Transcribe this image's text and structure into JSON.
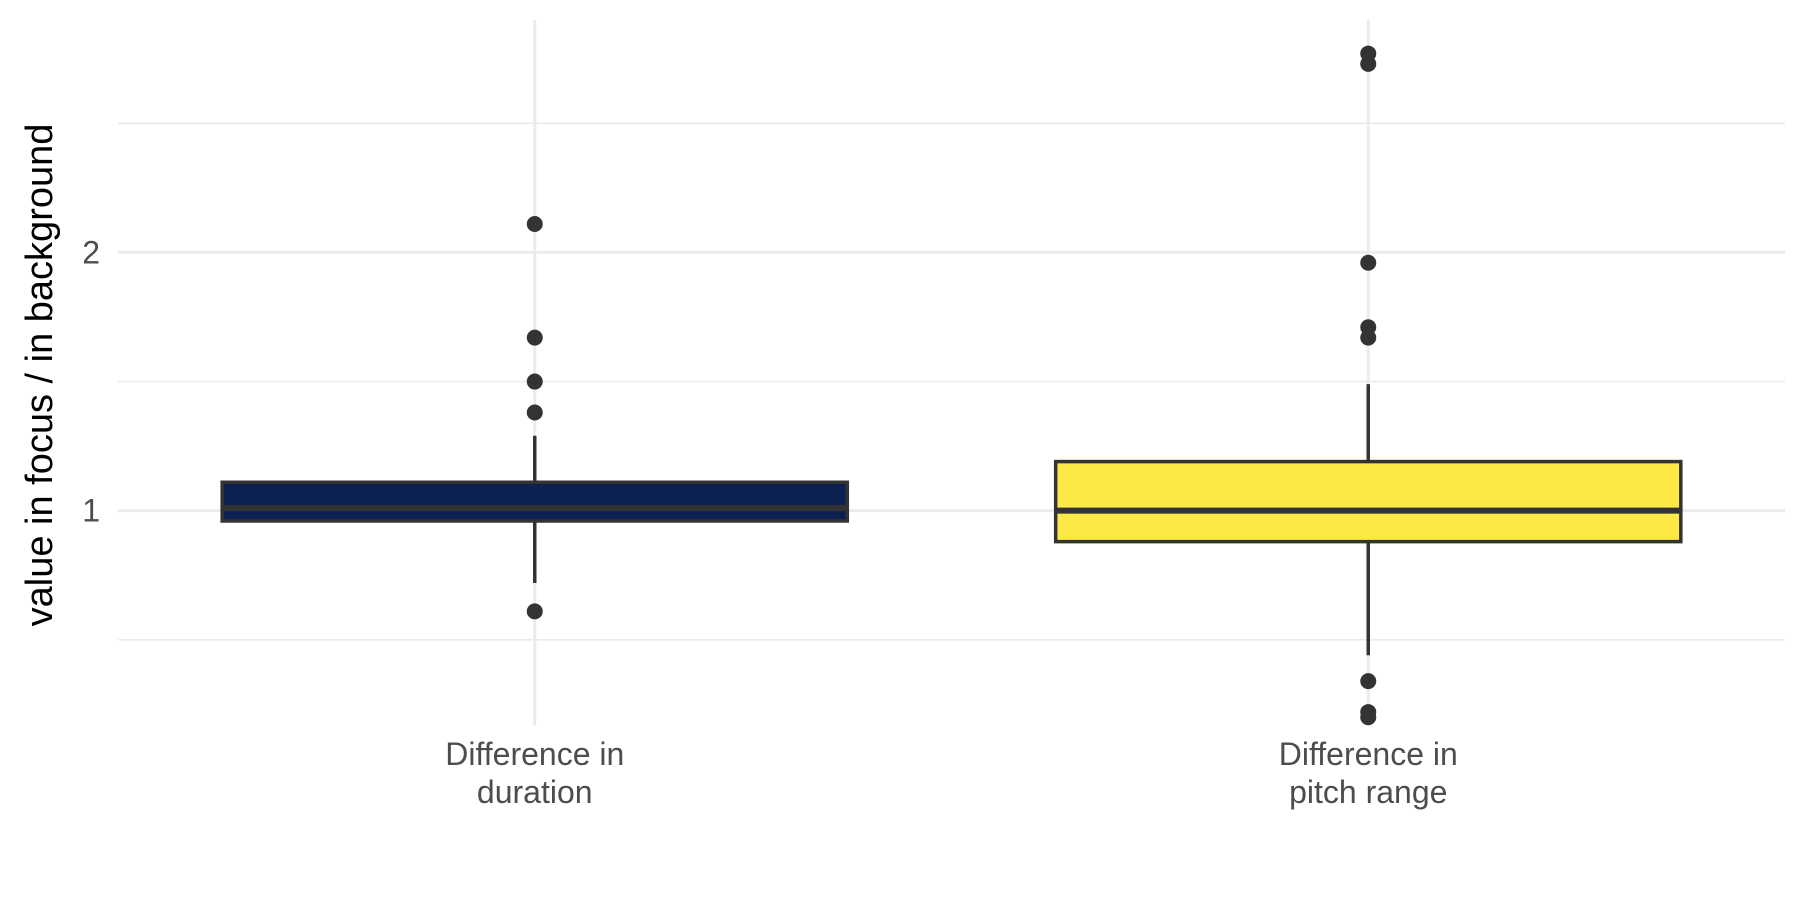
{
  "chart_data": {
    "type": "boxplot",
    "ylabel": "value in focus / in background",
    "xlabel": "",
    "ylim": [
      0.17,
      2.9
    ],
    "y_major_ticks": [
      1,
      2
    ],
    "y_minor_ticks": [
      0.5,
      1.5,
      2.5
    ],
    "grid": true,
    "categories": [
      [
        "Difference in",
        "duration"
      ],
      [
        "Difference in",
        "pitch range"
      ]
    ],
    "series": [
      {
        "category_index": 0,
        "fill": "#0d2150",
        "whisker_low": 0.72,
        "q1": 0.96,
        "median": 1.01,
        "q3": 1.11,
        "whisker_high": 1.29,
        "outliers": [
          0.61,
          1.38,
          1.5,
          1.67,
          2.11
        ]
      },
      {
        "category_index": 1,
        "fill": "#fde845",
        "whisker_low": 0.44,
        "q1": 0.88,
        "median": 1.0,
        "q3": 1.19,
        "whisker_high": 1.49,
        "outliers": [
          0.2,
          0.22,
          0.34,
          1.67,
          1.71,
          1.96,
          2.73,
          2.77
        ]
      }
    ]
  }
}
